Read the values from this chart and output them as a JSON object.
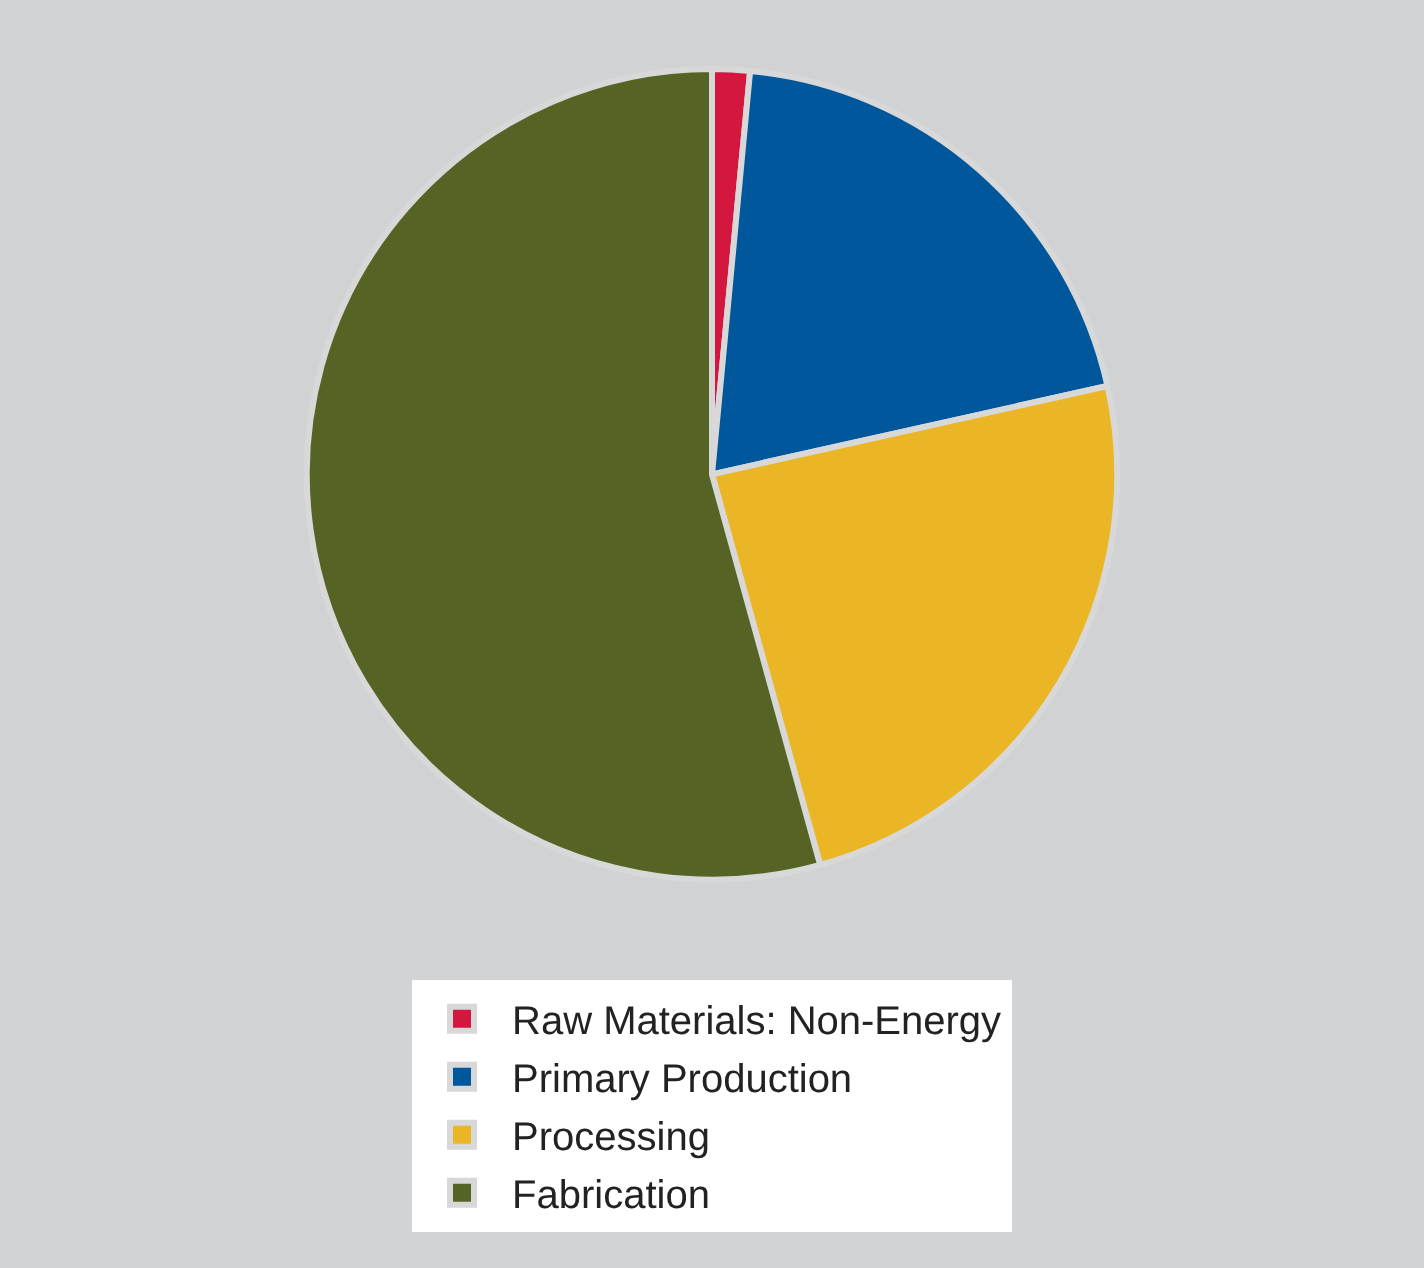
{
  "chart_data": {
    "type": "pie",
    "categories": [
      "Raw Materials: Non-Energy",
      "Primary Production",
      "Processing",
      "Fabrication"
    ],
    "values": [
      1.5,
      20,
      24.2,
      54.3
    ],
    "colors": [
      "#d4173f",
      "#00579b",
      "#ebb625",
      "#556425"
    ],
    "legend": "bottom"
  }
}
